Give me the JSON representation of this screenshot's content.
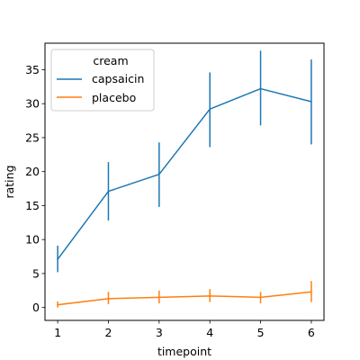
{
  "chart_data": {
    "type": "line",
    "xlabel": "timepoint",
    "ylabel": "rating",
    "x": [
      1,
      2,
      3,
      4,
      5,
      6
    ],
    "xlim": [
      0.75,
      6.25
    ],
    "ylim": [
      -1.9,
      38.9
    ],
    "x_ticks": [
      1,
      2,
      3,
      4,
      5,
      6
    ],
    "y_ticks": [
      0,
      5,
      10,
      15,
      20,
      25,
      30,
      35
    ],
    "grid": false,
    "legend": {
      "title": "cream",
      "position": "top-left"
    },
    "series": [
      {
        "name": "capsaicin",
        "color": "#1f77b4",
        "values": [
          7.1,
          17.1,
          19.6,
          29.2,
          32.2,
          30.3
        ],
        "err_low": [
          5.2,
          12.8,
          14.8,
          23.6,
          26.8,
          24.0
        ],
        "err_high": [
          9.1,
          21.4,
          24.3,
          34.6,
          37.8,
          36.5
        ]
      },
      {
        "name": "placebo",
        "color": "#ff7f0e",
        "values": [
          0.4,
          1.3,
          1.5,
          1.7,
          1.5,
          2.3
        ],
        "err_low": [
          0.0,
          0.5,
          0.6,
          0.8,
          0.6,
          0.8
        ],
        "err_high": [
          0.9,
          2.3,
          2.5,
          2.7,
          2.3,
          3.9
        ]
      }
    ]
  }
}
